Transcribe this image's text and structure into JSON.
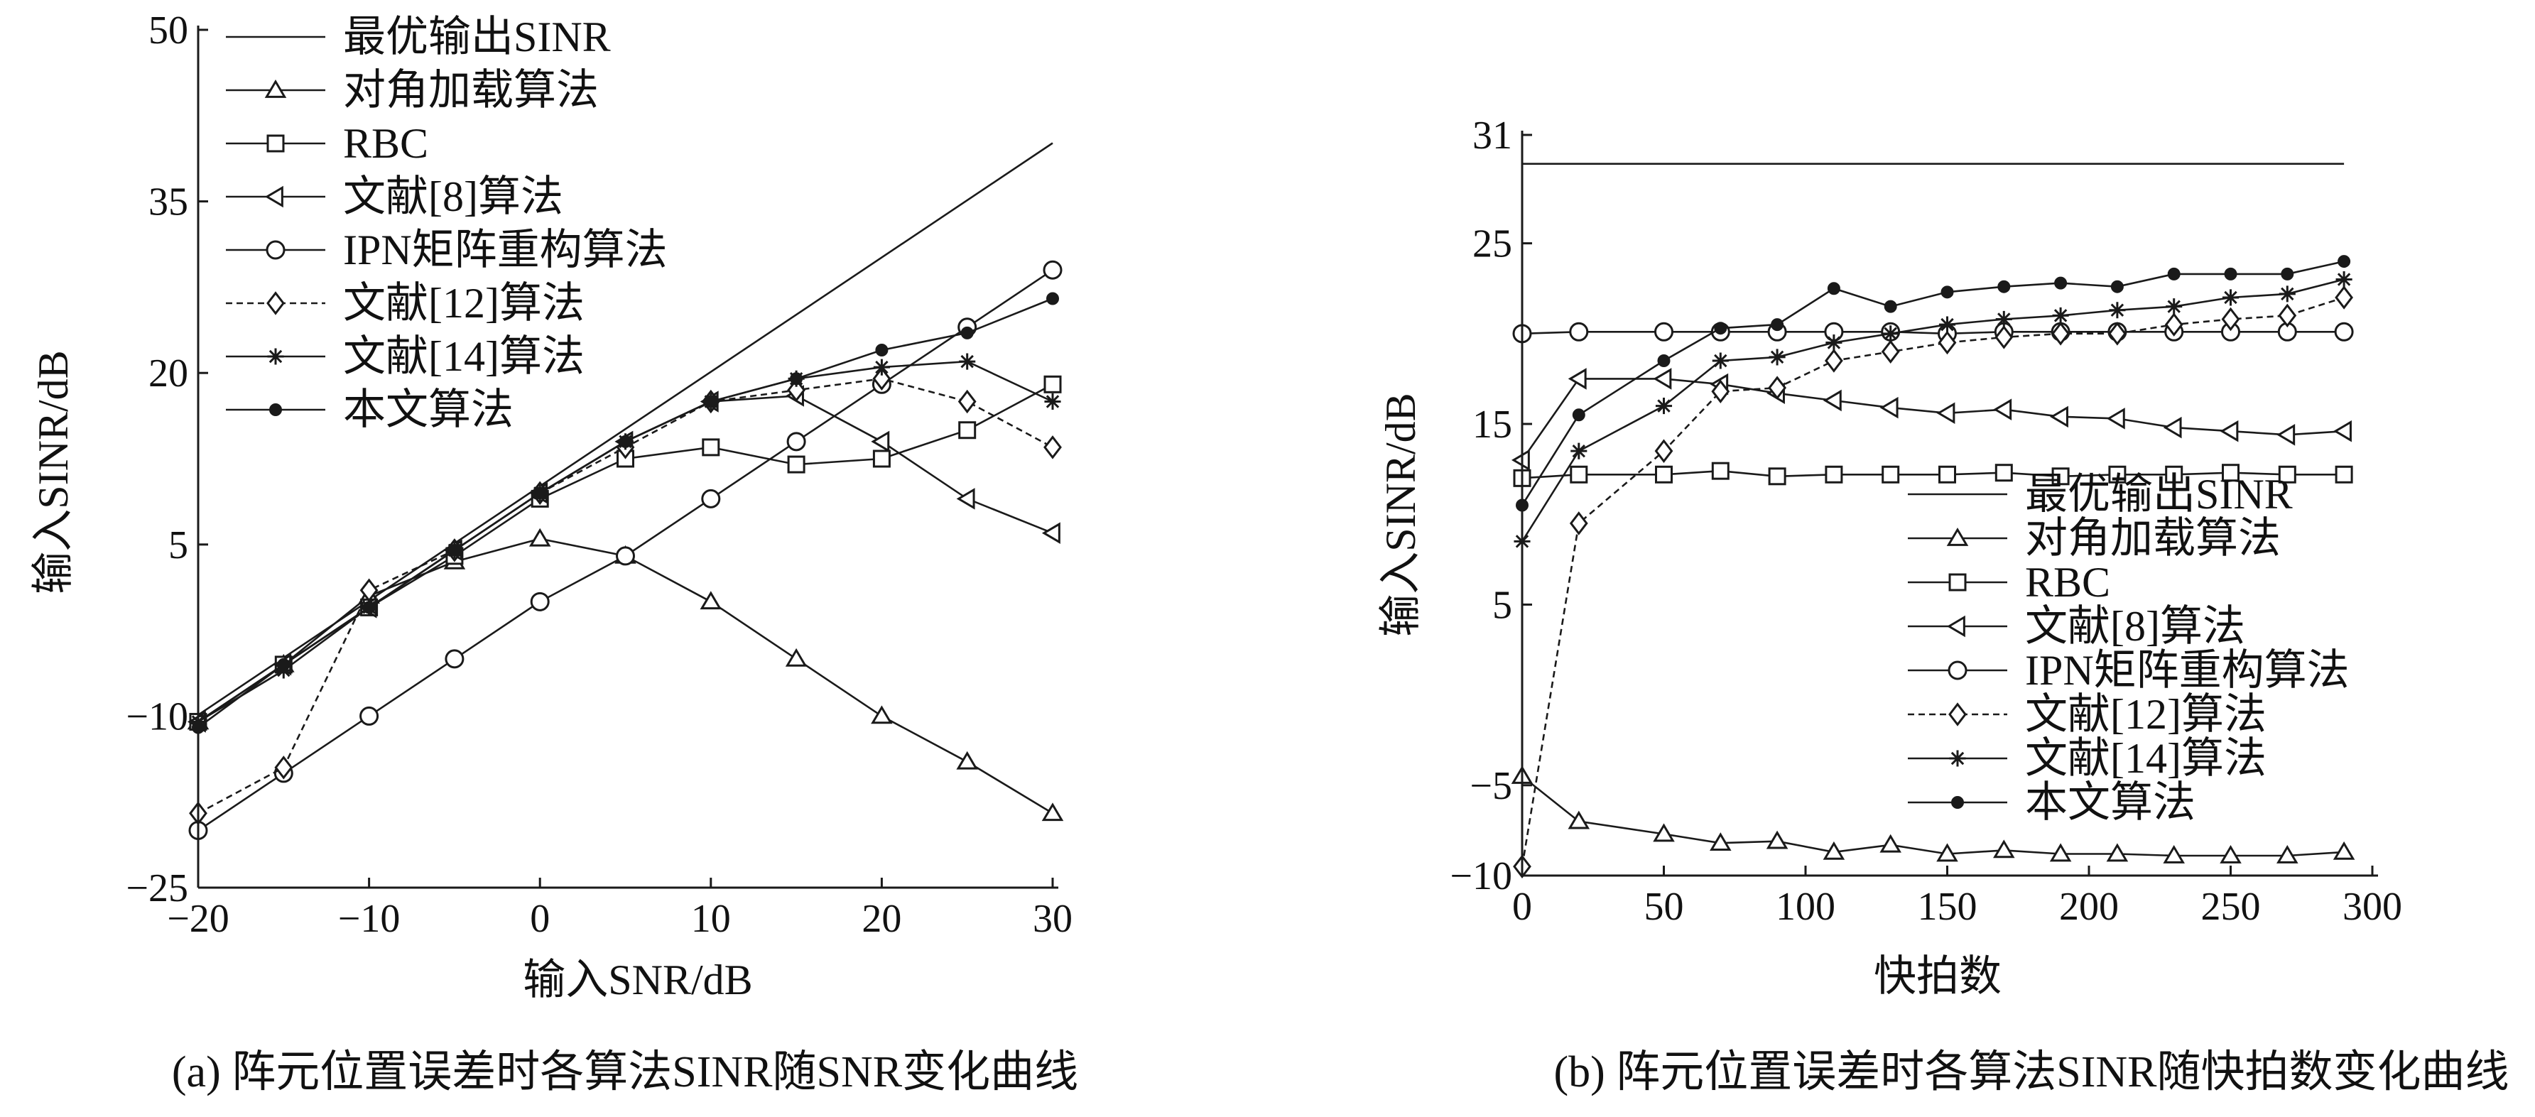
{
  "chart_data": [
    {
      "type": "line",
      "caption": "(a) 阵元位置误差时各算法SINR随SNR变化曲线",
      "xlabel": "输入SNR/dB",
      "ylabel": "输入SINR/dB",
      "xlim": [
        -20,
        30
      ],
      "ylim": [
        -25,
        50
      ],
      "xticks": [
        -20,
        -10,
        0,
        10,
        20,
        30
      ],
      "yticks": [
        -25,
        -10,
        5,
        20,
        35,
        50
      ],
      "xtick_labels": [
        "−20",
        "−10",
        "0",
        "10",
        "20",
        "30"
      ],
      "ytick_labels": [
        "−25",
        "−10",
        "5",
        "20",
        "35",
        "50"
      ],
      "legend_position": "top-left",
      "x": [
        -20,
        -15,
        -10,
        -5,
        0,
        5,
        10,
        15,
        20,
        25,
        30
      ],
      "series": [
        {
          "name": "最优输出SINR",
          "marker": "none",
          "x": [
            -20,
            30
          ],
          "values": [
            -9.9,
            40.1
          ]
        },
        {
          "name": "对角加载算法",
          "marker": "triangle",
          "values": [
            -10.5,
            -5.5,
            0.5,
            3.5,
            5.5,
            4.0,
            0.0,
            -5.0,
            -10.0,
            -14.0,
            -18.5
          ]
        },
        {
          "name": "RBC",
          "marker": "square",
          "values": [
            -10.5,
            -5.5,
            -0.5,
            4.0,
            9.0,
            12.5,
            13.5,
            12.0,
            12.5,
            15.0,
            19.0
          ]
        },
        {
          "name": "文献[8]算法",
          "marker": "triangle-left",
          "values": [
            -10.5,
            -5.5,
            -0.5,
            4.5,
            9.5,
            14.0,
            17.5,
            18.0,
            14.0,
            9.0,
            6.0
          ]
        },
        {
          "name": "IPN矩阵重构算法",
          "marker": "circle",
          "values": [
            -20.0,
            -15.0,
            -10.0,
            -5.0,
            0.0,
            4.0,
            9.0,
            14.0,
            19.0,
            24.0,
            29.0
          ]
        },
        {
          "name": "文献[12]算法",
          "marker": "diamond",
          "values": [
            -18.5,
            -14.5,
            1.0,
            4.5,
            9.5,
            13.5,
            17.5,
            18.5,
            19.5,
            17.5,
            13.5
          ]
        },
        {
          "name": "文献[14]算法",
          "marker": "star",
          "values": [
            -10.5,
            -6.0,
            -0.5,
            4.5,
            9.5,
            14.0,
            17.5,
            19.5,
            20.5,
            21.0,
            17.5
          ]
        },
        {
          "name": "本文算法",
          "marker": "dot",
          "values": [
            -11.0,
            -5.5,
            -0.5,
            4.5,
            9.5,
            14.0,
            17.5,
            19.5,
            22.0,
            23.5,
            26.5
          ]
        }
      ]
    },
    {
      "type": "line",
      "caption": "(b) 阵元位置误差时各算法SINR随快拍数变化曲线",
      "xlabel": "快拍数",
      "ylabel": "输入SINR/dB",
      "xlim": [
        0,
        300
      ],
      "ylim": [
        -10,
        31
      ],
      "xticks": [
        0,
        50,
        100,
        150,
        200,
        250,
        300
      ],
      "yticks": [
        -10,
        -5,
        5,
        15,
        25,
        31
      ],
      "xtick_labels": [
        "0",
        "50",
        "100",
        "150",
        "200",
        "250",
        "300"
      ],
      "ytick_labels": [
        "−10",
        "−5",
        "5",
        "15",
        "25",
        "31"
      ],
      "legend_position": "bottom-right",
      "x": [
        0,
        20,
        50,
        70,
        90,
        110,
        130,
        150,
        170,
        190,
        210,
        230,
        250,
        270,
        290
      ],
      "series": [
        {
          "name": "最优输出SINR",
          "marker": "none",
          "x": [
            0,
            290
          ],
          "values": [
            29.4,
            29.4
          ]
        },
        {
          "name": "对角加载算法",
          "marker": "triangle",
          "values": [
            -4.5,
            -7.0,
            -7.7,
            -8.2,
            -8.1,
            -8.7,
            -8.3,
            -8.8,
            -8.6,
            -8.8,
            -8.8,
            -8.9,
            -8.9,
            -8.9,
            -8.7
          ]
        },
        {
          "name": "RBC",
          "marker": "square",
          "values": [
            12.0,
            12.2,
            12.2,
            12.4,
            12.1,
            12.2,
            12.2,
            12.2,
            12.3,
            12.1,
            12.2,
            12.2,
            12.3,
            12.2,
            12.2
          ]
        },
        {
          "name": "文献[8]算法",
          "marker": "triangle-left",
          "values": [
            13.0,
            17.5,
            17.5,
            17.2,
            16.7,
            16.3,
            15.9,
            15.6,
            15.8,
            15.4,
            15.3,
            14.8,
            14.6,
            14.4,
            14.6
          ]
        },
        {
          "name": "IPN矩阵重构算法",
          "marker": "circle",
          "values": [
            20.0,
            20.1,
            20.1,
            20.1,
            20.1,
            20.1,
            20.1,
            20.0,
            20.1,
            20.1,
            20.1,
            20.1,
            20.1,
            20.1,
            20.1
          ]
        },
        {
          "name": "文献[12]算法",
          "marker": "diamond",
          "values": [
            -9.5,
            9.5,
            13.5,
            16.8,
            17.0,
            18.5,
            19.0,
            19.5,
            19.8,
            20.0,
            20.0,
            20.5,
            20.8,
            21.0,
            22.0
          ]
        },
        {
          "name": "文献[14]算法",
          "marker": "star",
          "values": [
            8.5,
            13.5,
            16.0,
            18.5,
            18.7,
            19.5,
            20.0,
            20.5,
            20.8,
            21.0,
            21.3,
            21.5,
            22.0,
            22.2,
            23.0
          ]
        },
        {
          "name": "本文算法",
          "marker": "dot",
          "values": [
            10.5,
            15.5,
            18.5,
            20.3,
            20.5,
            22.5,
            21.5,
            22.3,
            22.6,
            22.8,
            22.6,
            23.3,
            23.3,
            23.3,
            24.0
          ]
        }
      ]
    }
  ]
}
